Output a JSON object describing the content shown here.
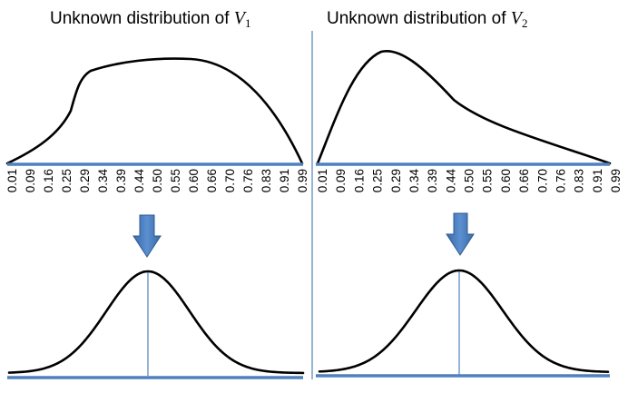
{
  "panels": [
    {
      "title_prefix": "Unknown distribution of ",
      "title_var": "V",
      "title_sub": "1",
      "tick_labels": [
        "0.01",
        "0.09",
        "0.16",
        "0.25",
        "0.29",
        "0.34",
        "0.39",
        "0.44",
        "0.50",
        "0.55",
        "0.60",
        "0.66",
        "0.70",
        "0.76",
        "0.83",
        "0.91",
        "0.99"
      ]
    },
    {
      "title_prefix": "Unknown distribution of ",
      "title_var": "V",
      "title_sub": "2",
      "tick_labels": [
        "0.01",
        "0.09",
        "0.16",
        "0.25",
        "0.29",
        "0.34",
        "0.39",
        "0.44",
        "0.50",
        "0.55",
        "0.60",
        "0.66",
        "0.70",
        "0.76",
        "0.83",
        "0.91",
        "0.99"
      ]
    }
  ],
  "colors": {
    "axis": "#4f81bd",
    "arrow": "#4f81bd",
    "curve": "#000000"
  },
  "icons": {
    "arrow": "down-arrow-icon"
  }
}
